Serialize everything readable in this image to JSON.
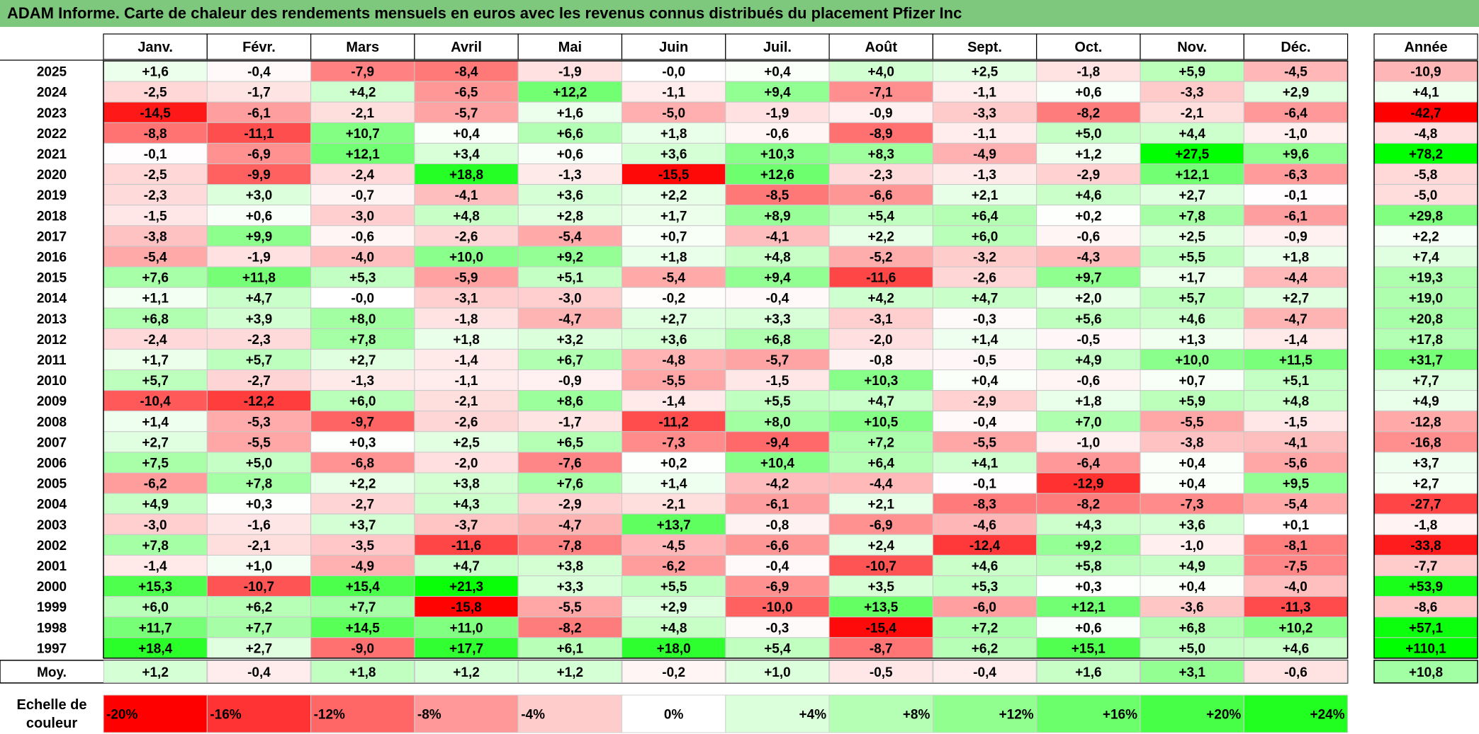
{
  "title": "ADAM Informe. Carte de chaleur des rendements mensuels en euros avec les revenus connus distribués du placement Pfizer Inc",
  "chart_data": {
    "type": "heatmap",
    "title": "ADAM Informe. Carte de chaleur des rendements mensuels en euros avec les revenus connus distribués du placement Pfizer Inc",
    "columns": [
      "Janv.",
      "Févr.",
      "Mars",
      "Avril",
      "Mai",
      "Juin",
      "Juil.",
      "Août",
      "Sept.",
      "Oct.",
      "Nov.",
      "Déc."
    ],
    "annual_header": "Année",
    "rows": [
      {
        "year": "2025",
        "values": [
          "+1,6",
          "-0,4",
          "-7,9",
          "-8,4",
          "-1,9",
          "-0,0",
          "+0,4",
          "+4,0",
          "+2,5",
          "-1,8",
          "+5,9",
          "-4,5"
        ],
        "annual": "-10,9"
      },
      {
        "year": "2024",
        "values": [
          "-2,5",
          "-1,7",
          "+4,2",
          "-6,5",
          "+12,2",
          "-1,1",
          "+9,4",
          "-7,1",
          "-1,1",
          "+0,6",
          "-3,3",
          "+2,9"
        ],
        "annual": "+4,1"
      },
      {
        "year": "2023",
        "values": [
          "-14,5",
          "-6,1",
          "-2,1",
          "-5,7",
          "+1,6",
          "-5,0",
          "-1,9",
          "-0,9",
          "-3,3",
          "-8,2",
          "-2,1",
          "-6,4"
        ],
        "annual": "-42,7"
      },
      {
        "year": "2022",
        "values": [
          "-8,8",
          "-11,1",
          "+10,7",
          "+0,4",
          "+6,6",
          "+1,8",
          "-0,6",
          "-8,9",
          "-1,1",
          "+5,0",
          "+4,4",
          "-1,0"
        ],
        "annual": "-4,8"
      },
      {
        "year": "2021",
        "values": [
          "-0,1",
          "-6,9",
          "+12,1",
          "+3,4",
          "+0,6",
          "+3,6",
          "+10,3",
          "+8,3",
          "-4,9",
          "+1,2",
          "+27,5",
          "+9,6"
        ],
        "annual": "+78,2"
      },
      {
        "year": "2020",
        "values": [
          "-2,5",
          "-9,9",
          "-2,4",
          "+18,8",
          "-1,3",
          "-15,5",
          "+12,6",
          "-2,3",
          "-1,3",
          "-2,9",
          "+12,1",
          "-6,3"
        ],
        "annual": "-5,8"
      },
      {
        "year": "2019",
        "values": [
          "-2,3",
          "+3,0",
          "-0,7",
          "-4,1",
          "+3,6",
          "+2,2",
          "-8,5",
          "-6,6",
          "+2,1",
          "+4,6",
          "+2,7",
          "-0,1"
        ],
        "annual": "-5,0"
      },
      {
        "year": "2018",
        "values": [
          "-1,5",
          "+0,6",
          "-3,0",
          "+4,8",
          "+2,8",
          "+1,7",
          "+8,9",
          "+5,4",
          "+6,4",
          "+0,2",
          "+7,8",
          "-6,1"
        ],
        "annual": "+29,8"
      },
      {
        "year": "2017",
        "values": [
          "-3,8",
          "+9,9",
          "-0,6",
          "-2,6",
          "-5,4",
          "+0,7",
          "-4,1",
          "+2,2",
          "+6,0",
          "-0,6",
          "+2,5",
          "-0,9"
        ],
        "annual": "+2,2"
      },
      {
        "year": "2016",
        "values": [
          "-5,4",
          "-1,9",
          "-4,0",
          "+10,0",
          "+9,2",
          "+1,8",
          "+4,8",
          "-5,2",
          "-3,2",
          "-4,3",
          "+5,5",
          "+1,8"
        ],
        "annual": "+7,4"
      },
      {
        "year": "2015",
        "values": [
          "+7,6",
          "+11,8",
          "+5,3",
          "-5,9",
          "+5,1",
          "-5,4",
          "+9,4",
          "-11,6",
          "-2,6",
          "+9,7",
          "+1,7",
          "-4,4"
        ],
        "annual": "+19,3"
      },
      {
        "year": "2014",
        "values": [
          "+1,1",
          "+4,7",
          "-0,0",
          "-3,1",
          "-3,0",
          "-0,2",
          "-0,4",
          "+4,2",
          "+4,7",
          "+2,0",
          "+5,7",
          "+2,7"
        ],
        "annual": "+19,0"
      },
      {
        "year": "2013",
        "values": [
          "+6,8",
          "+3,9",
          "+8,0",
          "-1,8",
          "-4,7",
          "+2,7",
          "+3,3",
          "-3,1",
          "-0,3",
          "+5,6",
          "+4,6",
          "-4,7"
        ],
        "annual": "+20,8"
      },
      {
        "year": "2012",
        "values": [
          "-2,4",
          "-2,3",
          "+7,8",
          "+1,8",
          "+3,2",
          "+3,6",
          "+6,8",
          "-2,0",
          "+1,4",
          "-0,5",
          "+1,3",
          "-1,4"
        ],
        "annual": "+17,8"
      },
      {
        "year": "2011",
        "values": [
          "+1,7",
          "+5,7",
          "+2,7",
          "-1,4",
          "+6,7",
          "-4,8",
          "-5,7",
          "-0,8",
          "-0,5",
          "+4,9",
          "+10,0",
          "+11,5"
        ],
        "annual": "+31,7"
      },
      {
        "year": "2010",
        "values": [
          "+5,7",
          "-2,7",
          "-1,3",
          "-1,1",
          "-0,9",
          "-5,5",
          "-1,5",
          "+10,3",
          "+0,4",
          "-0,6",
          "+0,7",
          "+5,1"
        ],
        "annual": "+7,7"
      },
      {
        "year": "2009",
        "values": [
          "-10,4",
          "-12,2",
          "+6,0",
          "-2,1",
          "+8,6",
          "-1,4",
          "+5,5",
          "+4,7",
          "-2,9",
          "+1,8",
          "+5,9",
          "+4,8"
        ],
        "annual": "+4,9"
      },
      {
        "year": "2008",
        "values": [
          "+1,4",
          "-5,3",
          "-9,7",
          "-2,6",
          "-1,7",
          "-11,2",
          "+8,0",
          "+10,5",
          "-0,4",
          "+7,0",
          "-5,5",
          "-1,5"
        ],
        "annual": "-12,8"
      },
      {
        "year": "2007",
        "values": [
          "+2,7",
          "-5,5",
          "+0,3",
          "+2,5",
          "+6,5",
          "-7,3",
          "-9,4",
          "+7,2",
          "-5,5",
          "-1,0",
          "-3,8",
          "-4,1"
        ],
        "annual": "-16,8"
      },
      {
        "year": "2006",
        "values": [
          "+7,5",
          "+5,0",
          "-6,8",
          "-2,0",
          "-7,6",
          "+0,2",
          "+10,4",
          "+6,4",
          "+4,1",
          "-6,4",
          "+0,4",
          "-5,6"
        ],
        "annual": "+3,7"
      },
      {
        "year": "2005",
        "values": [
          "-6,2",
          "+7,8",
          "+2,2",
          "+3,8",
          "+7,6",
          "+1,4",
          "-4,2",
          "-4,4",
          "-0,1",
          "-12,9",
          "+0,4",
          "+9,5"
        ],
        "annual": "+2,7"
      },
      {
        "year": "2004",
        "values": [
          "+4,9",
          "+0,3",
          "-2,7",
          "+4,3",
          "-2,9",
          "-2,1",
          "-6,1",
          "+2,1",
          "-8,3",
          "-8,2",
          "-7,3",
          "-5,4"
        ],
        "annual": "-27,7"
      },
      {
        "year": "2003",
        "values": [
          "-3,0",
          "-1,6",
          "+3,7",
          "-3,7",
          "-4,7",
          "+13,7",
          "-0,8",
          "-6,9",
          "-4,6",
          "+4,3",
          "+3,6",
          "+0,1"
        ],
        "annual": "-1,8"
      },
      {
        "year": "2002",
        "values": [
          "+7,8",
          "-2,1",
          "-3,5",
          "-11,6",
          "-7,8",
          "-4,5",
          "-6,6",
          "+2,4",
          "-12,4",
          "+9,2",
          "-1,0",
          "-8,1"
        ],
        "annual": "-33,8"
      },
      {
        "year": "2001",
        "values": [
          "-1,4",
          "+1,0",
          "-4,9",
          "+4,7",
          "+3,8",
          "-6,2",
          "-0,4",
          "-10,7",
          "+4,6",
          "+5,8",
          "+4,9",
          "-7,5"
        ],
        "annual": "-7,7"
      },
      {
        "year": "2000",
        "values": [
          "+15,3",
          "-10,7",
          "+15,4",
          "+21,3",
          "+3,3",
          "+5,5",
          "-6,9",
          "+3,5",
          "+5,3",
          "+0,3",
          "+0,4",
          "-4,0"
        ],
        "annual": "+53,9"
      },
      {
        "year": "1999",
        "values": [
          "+6,0",
          "+6,2",
          "+7,7",
          "-15,8",
          "-5,5",
          "+2,9",
          "-10,0",
          "+13,5",
          "-6,0",
          "+12,1",
          "-3,6",
          "-11,3"
        ],
        "annual": "-8,6"
      },
      {
        "year": "1998",
        "values": [
          "+11,7",
          "+7,7",
          "+14,5",
          "+11,0",
          "-8,2",
          "+4,8",
          "-0,3",
          "-15,4",
          "+7,2",
          "+0,6",
          "+6,8",
          "+10,2"
        ],
        "annual": "+57,1"
      },
      {
        "year": "1997",
        "values": [
          "+18,4",
          "+2,7",
          "-9,0",
          "+17,7",
          "+6,1",
          "+18,0",
          "+5,4",
          "-8,7",
          "+6,2",
          "+15,1",
          "+5,0",
          "+4,6"
        ],
        "annual": "+110,1"
      }
    ],
    "average": {
      "label": "Moy.",
      "values": [
        "+1,2",
        "-0,4",
        "+1,8",
        "+1,2",
        "+1,2",
        "-0,2",
        "+1,0",
        "-0,5",
        "-0,4",
        "+1,6",
        "+3,1",
        "-0,6"
      ],
      "annual": "+10,8"
    },
    "color_scale": {
      "label_line1": "Echelle de",
      "label_line2": "couleur",
      "steps": [
        "-20%",
        "-16%",
        "-12%",
        "-8%",
        "-4%",
        "0%",
        "+4%",
        "+8%",
        "+12%",
        "+16%",
        "+20%",
        "+24%"
      ]
    },
    "colors": {
      "negative": "#ff0000",
      "neutral": "#ffffff",
      "positive": "#00ff00",
      "title_bg": "#7ec87e"
    }
  }
}
